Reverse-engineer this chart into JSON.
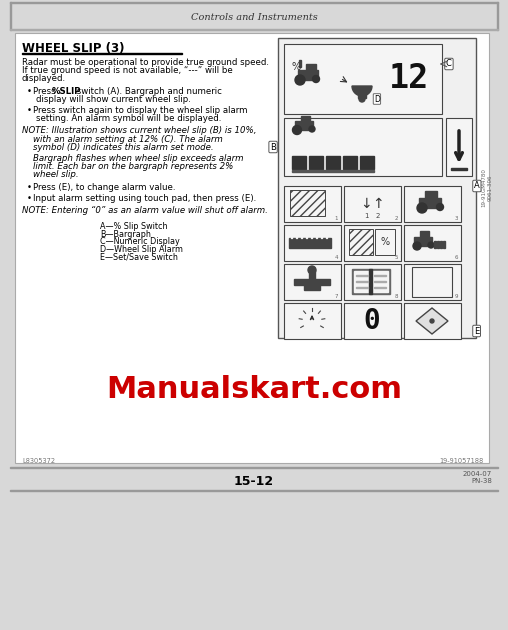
{
  "page_bg": "#d8d8d8",
  "content_bg": "#ffffff",
  "header_text": "Controls and Instruments",
  "title": "WHEEL SLIP (3)",
  "watermark": "Manualskart.com",
  "watermark_color": "#cc0000",
  "page_number": "15-12",
  "footer_right1": "2004-07",
  "footer_right2": "PN-38",
  "footnote_left": "L8305372",
  "footnote_right": "19-91057188"
}
